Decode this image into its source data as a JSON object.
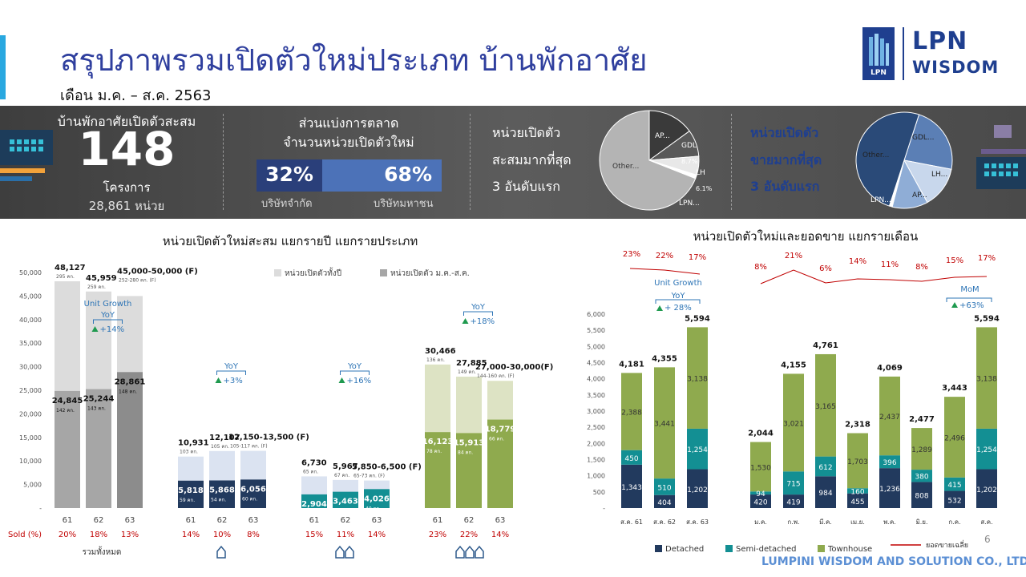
{
  "header": {
    "title": "สรุปภาพรวมเปิดตัวใหม่ประเภท บ้านพักอาศัย",
    "subtitle": "เดือน ม.ค. – ส.ค. 2563",
    "logo_top": "LPN",
    "logo_bottom": "WISDOM",
    "logo_small": "LPN"
  },
  "banner": {
    "cum_label": "บ้านพักอาศัยเปิดตัวสะสม",
    "cum_number": "148",
    "cum_unit": "โครงการ",
    "cum_units": "28,861 หน่วย",
    "share_title1": "ส่วนแบ่งการตลาด",
    "share_title2": "จำนวนหน่วยเปิดตัวใหม่",
    "share_private_pct": "32%",
    "share_public_pct": "68%",
    "share_private_label": "บริษัทจำกัด",
    "share_public_label": "บริษัทมหาชน",
    "top_launch_line1": "หน่วยเปิดตัว",
    "top_launch_line2": "สะสมมากที่สุด",
    "top_launch_line3": "3 อันดับแรก",
    "top_sold_line1": "หน่วยเปิดตัว",
    "top_sold_line2": "ขายมากที่สุด",
    "top_sold_line3": "3 อันดับแรก",
    "colors": {
      "private_bar": "#2a3f7a",
      "public_bar": "#4c72b8",
      "sold_text": "#1f3f8f"
    }
  },
  "chart_data": [
    {
      "type": "pie",
      "title": "หน่วยเปิดตัวสะสมมากที่สุด 3 อันดับแรก",
      "slices": [
        {
          "label": "AP...",
          "value": 15,
          "color": "#3a3a3a"
        },
        {
          "label": "GDL",
          "value_label": "8.7%",
          "value": 8.7,
          "color": "#595959"
        },
        {
          "label": "LH",
          "value_label": "6.1%",
          "value": 6.1,
          "color": "#e8e8e8"
        },
        {
          "label": "LPN...",
          "value": 1.2,
          "color": "#ffffff"
        },
        {
          "label": "Other...",
          "value": 69,
          "color": "#b4b4b4"
        }
      ]
    },
    {
      "type": "pie",
      "title": "หน่วยเปิดตัวขายมากที่สุด 3 อันดับแรก",
      "slices": [
        {
          "label": "GDL...",
          "value": 23,
          "color": "#5b7fb5"
        },
        {
          "label": "LH...",
          "value": 14,
          "color": "#c8d7ec"
        },
        {
          "label": "AP...",
          "value": 12,
          "color": "#8fadd6"
        },
        {
          "label": "LPN...",
          "value": 1,
          "color": "#ffffff"
        },
        {
          "label": "Other...",
          "value": 50,
          "color": "#2a4a78"
        }
      ]
    },
    {
      "type": "bar",
      "title": "หน่วยเปิดตัวใหม่สะสม แยกรายปี แยกรายประเภท",
      "legend": [
        "หน่วยเปิดตัวทั้งปี",
        "หน่วยเปิดตัว ม.ค.-ส.ค."
      ],
      "yticks": [
        "50,000",
        "45,000",
        "40,000",
        "35,000",
        "30,000",
        "25,000",
        "20,000",
        "15,000",
        "10,000",
        "5,000",
        "-"
      ],
      "ylim": [
        0,
        50000
      ],
      "sold_label": "Sold (%)",
      "groups": [
        {
          "name": "รวมทั้งหมด",
          "color_total": "#dcdcdc",
          "color_ytd": "#a6a6a6",
          "color_ytd_last": "#8c8c8c",
          "years": [
            "61",
            "62",
            "63"
          ],
          "total": [
            48127,
            45959,
            45000
          ],
          "total_label": [
            "48,127",
            "45,959",
            "45,000-50,000 (F)"
          ],
          "total_proj": [
            "295 คก.",
            "259 คก.",
            "252-280 คก. (F)"
          ],
          "ytd": [
            24845,
            25244,
            28861
          ],
          "ytd_label": [
            "24,845",
            "25,244",
            "28,861"
          ],
          "ytd_proj": [
            "142 คก.",
            "143 คก.",
            "148 คก."
          ],
          "sold": [
            "20%",
            "18%",
            "13%"
          ],
          "growth_title": "Unit Growth",
          "yoy": "YoY",
          "growth": "+14%"
        },
        {
          "name": "Detached",
          "color_total": "#dbe3f1",
          "color_ytd": "#223a5e",
          "color_ytd_last": "#223a5e",
          "years": [
            "61",
            "62",
            "63"
          ],
          "total": [
            10931,
            12107,
            12150
          ],
          "total_label": [
            "10,931",
            "12,107",
            "12,150-13,500 (F)"
          ],
          "total_proj": [
            "103 คก.",
            "105 คก.",
            "105-117 คก. (F)"
          ],
          "ytd": [
            5818,
            5868,
            6056
          ],
          "ytd_label": [
            "5,818",
            "5,868",
            "6,056"
          ],
          "ytd_proj": [
            "59 คก.",
            "54 คก.",
            "60 คก."
          ],
          "sold": [
            "14%",
            "10%",
            "8%"
          ],
          "growth_title": "",
          "yoy": "YoY",
          "growth": "+3%"
        },
        {
          "name": "Semi-detached",
          "color_total": "#dbe3f1",
          "color_ytd": "#138f93",
          "color_ytd_last": "#138f93",
          "years": [
            "61",
            "62",
            "63"
          ],
          "total": [
            6730,
            5967,
            5850
          ],
          "total_label": [
            "6,730",
            "5,967",
            "5,850-6,500 (F)"
          ],
          "total_proj": [
            "65 คก.",
            "67 คก.",
            "65-73 คก. (F)"
          ],
          "ytd": [
            2904,
            3463,
            4026
          ],
          "ytd_label": [
            "2,904",
            "3,463",
            "4,026"
          ],
          "ytd_proj": [
            "31 คก.",
            "35 คก.",
            "40 คก."
          ],
          "sold": [
            "15%",
            "11%",
            "14%"
          ],
          "growth_title": "",
          "yoy": "YoY",
          "growth": "+16%"
        },
        {
          "name": "Townhouse",
          "color_total": "#dde3c4",
          "color_ytd": "#8faa4e",
          "color_ytd_last": "#8faa4e",
          "years": [
            "61",
            "62",
            "63"
          ],
          "total": [
            30466,
            27885,
            27000
          ],
          "total_label": [
            "30,466",
            "27,885",
            "27,000-30,000(F)"
          ],
          "total_proj": [
            "136 คก.",
            "149 คก.",
            "144-160 คก. (F)"
          ],
          "ytd": [
            16123,
            15913,
            18779
          ],
          "ytd_label": [
            "16,123",
            "15,913",
            "18,779"
          ],
          "ytd_proj": [
            "78 คก.",
            "84 คก.",
            "66 คก."
          ],
          "sold": [
            "23%",
            "22%",
            "14%"
          ],
          "growth_title": "",
          "yoy": "YoY",
          "growth": "+18%"
        }
      ]
    },
    {
      "type": "bar",
      "stacked": true,
      "title": "หน่วยเปิดตัวใหม่และยอดขาย แยกรายเดือน",
      "yticks": [
        "6,000",
        "5,500",
        "5,000",
        "4,500",
        "4,000",
        "3,500",
        "3,000",
        "2,500",
        "2,000",
        "1,500",
        "1,000",
        "500",
        "-"
      ],
      "ylim": [
        0,
        6000
      ],
      "series_names": [
        "Detached",
        "Semi-detached",
        "Townhouse",
        "ยอดขายเฉลี่ย"
      ],
      "colors": [
        "#223a5e",
        "#138f93",
        "#8faa4e",
        "#c00000"
      ],
      "annual": {
        "categories": [
          "ส.ค. 61",
          "ส.ค. 62",
          "ส.ค. 63"
        ],
        "detached": [
          1343,
          404,
          1202
        ],
        "semi": [
          450,
          510,
          1254
        ],
        "townhouse": [
          2388,
          3441,
          3138
        ],
        "totals": [
          "4,181",
          "4,355",
          "5,594"
        ],
        "sold": [
          "23%",
          "22%",
          "17%"
        ],
        "growth_title": "Unit Growth",
        "yoy": "YoY",
        "growth": "+ 28%"
      },
      "monthly": {
        "categories": [
          "ม.ค.",
          "ก.พ.",
          "มี.ค.",
          "เม.ย.",
          "พ.ค.",
          "มิ.ย.",
          "ก.ค.",
          "ส.ค."
        ],
        "detached": [
          420,
          419,
          984,
          455,
          1236,
          808,
          532,
          1202
        ],
        "semi": [
          94,
          715,
          612,
          160,
          396,
          380,
          415,
          1254
        ],
        "townhouse": [
          1530,
          3021,
          3165,
          1703,
          2437,
          1289,
          2496,
          3138
        ],
        "totals": [
          "2,044",
          "4,155",
          "4,761",
          "2,318",
          "4,069",
          "2,477",
          "3,443",
          "5,594"
        ],
        "sold": [
          "8%",
          "21%",
          "6%",
          "14%",
          "11%",
          "8%",
          "15%",
          "17%"
        ],
        "mom": "MoM",
        "growth": "+63%"
      }
    }
  ],
  "footer": {
    "company": "LUMPINI WISDOM AND SOLUTION CO., LTD.",
    "page": "6"
  }
}
